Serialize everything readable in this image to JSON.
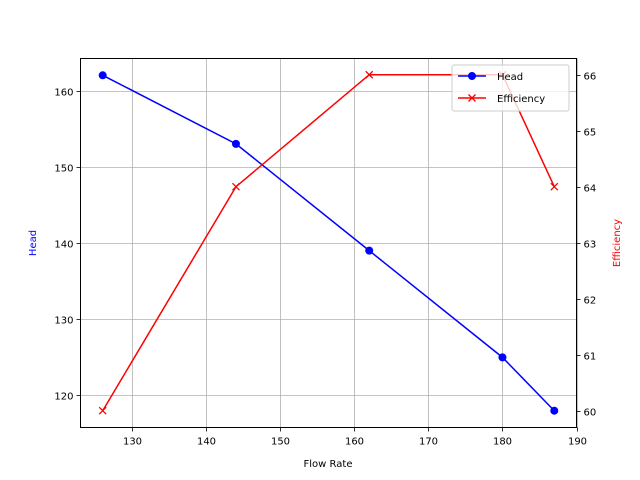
{
  "chart_data": {
    "type": "line",
    "title": "",
    "xlabel": "Flow Rate",
    "ylabel": "Head",
    "y2label": "Efficiency",
    "xlim": [
      123.0,
      190.0
    ],
    "ylim": [
      115.8,
      164.2
    ],
    "y2lim": [
      59.7,
      66.29
    ],
    "xticks": [
      130,
      140,
      150,
      160,
      170,
      180,
      190
    ],
    "yticks": [
      120,
      130,
      140,
      150,
      160
    ],
    "y2ticks": [
      60,
      61,
      62,
      63,
      64,
      65,
      66
    ],
    "grid": true,
    "legend_position": "upper right",
    "x": [
      126,
      144,
      162,
      180,
      187
    ],
    "series": [
      {
        "name": "Head",
        "axis": "left",
        "color": "#0000ff",
        "marker": "circle",
        "values": [
          162,
          153,
          139,
          125,
          118
        ]
      },
      {
        "name": "Efficiency",
        "axis": "right",
        "color": "#ff0000",
        "marker": "x",
        "values": [
          60,
          64,
          66,
          66,
          64
        ]
      }
    ]
  },
  "colors": {
    "head": "#0000ff",
    "efficiency": "#ff0000",
    "grid": "#b0b0b0"
  }
}
